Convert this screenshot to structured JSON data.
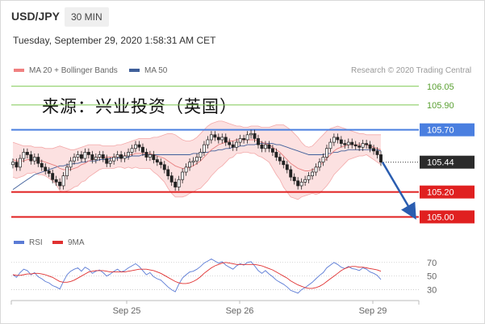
{
  "header": {
    "symbol": "USD/JPY",
    "timeframe": "30 MIN",
    "timestamp": "Tuesday, September 29, 2020 1:58:31 AM CET"
  },
  "legend_top": {
    "ma20_bb": {
      "label": "MA 20 + Bollinger Bands",
      "color": "#f08080"
    },
    "ma50": {
      "label": "MA 50",
      "color": "#3f5f9a"
    },
    "copyright": "Research © 2020 Trading Central"
  },
  "overlay_text": "来源：兴业投资（英国）",
  "legend_bottom": {
    "rsi": {
      "label": "RSI",
      "color": "#5b7bd5"
    },
    "ma9": {
      "label": "9MA",
      "color": "#e03030"
    }
  },
  "chart_data": {
    "type": "candlestick",
    "x_labels": [
      "Sep 25",
      "Sep 26",
      "Sep 29"
    ],
    "ylim": [
      104.86,
      106.12
    ],
    "y_ticks": [
      105.0,
      105.2,
      105.44,
      105.7,
      105.9,
      106.05
    ],
    "current_price": 105.44,
    "levels": [
      {
        "value": 106.05,
        "label": "106.05",
        "color": "#7ec850",
        "kind": "resistance"
      },
      {
        "value": 105.9,
        "label": "105.90",
        "color": "#7ec850",
        "kind": "resistance"
      },
      {
        "value": 105.7,
        "label": "105.70",
        "color": "#4a7fe0",
        "kind": "pivot"
      },
      {
        "value": 105.2,
        "label": "105.20",
        "color": "#e02020",
        "kind": "support"
      },
      {
        "value": 105.0,
        "label": "105.00",
        "color": "#e02020",
        "kind": "support"
      }
    ],
    "price_close": [
      105.44,
      105.4,
      105.47,
      105.52,
      105.5,
      105.45,
      105.48,
      105.43,
      105.4,
      105.37,
      105.35,
      105.3,
      105.28,
      105.25,
      105.33,
      105.4,
      105.45,
      105.48,
      105.5,
      105.47,
      105.52,
      105.5,
      105.46,
      105.48,
      105.5,
      105.47,
      105.43,
      105.45,
      105.48,
      105.5,
      105.47,
      105.49,
      105.52,
      105.55,
      105.58,
      105.56,
      105.52,
      105.48,
      105.5,
      105.46,
      105.44,
      105.42,
      105.38,
      105.33,
      105.28,
      105.24,
      105.3,
      105.36,
      105.4,
      105.44,
      105.45,
      105.48,
      105.52,
      105.58,
      105.62,
      105.66,
      105.64,
      105.62,
      105.64,
      105.6,
      105.58,
      105.56,
      105.6,
      105.63,
      105.62,
      105.66,
      105.67,
      105.63,
      105.58,
      105.55,
      105.58,
      105.55,
      105.52,
      105.48,
      105.45,
      105.42,
      105.38,
      105.32,
      105.29,
      105.25,
      105.28,
      105.3,
      105.33,
      105.36,
      105.4,
      105.44,
      105.48,
      105.55,
      105.6,
      105.64,
      105.62,
      105.59,
      105.58,
      105.6,
      105.58,
      105.57,
      105.56,
      105.59,
      105.58,
      105.55,
      105.53,
      105.5,
      105.44
    ],
    "price_open": [
      105.42,
      105.44,
      105.4,
      105.47,
      105.52,
      105.5,
      105.45,
      105.48,
      105.43,
      105.4,
      105.37,
      105.35,
      105.3,
      105.28,
      105.25,
      105.33,
      105.4,
      105.45,
      105.48,
      105.5,
      105.47,
      105.52,
      105.5,
      105.46,
      105.48,
      105.5,
      105.47,
      105.43,
      105.45,
      105.48,
      105.5,
      105.47,
      105.49,
      105.52,
      105.55,
      105.58,
      105.56,
      105.52,
      105.48,
      105.5,
      105.46,
      105.44,
      105.42,
      105.38,
      105.33,
      105.28,
      105.24,
      105.3,
      105.36,
      105.4,
      105.44,
      105.45,
      105.48,
      105.52,
      105.58,
      105.62,
      105.66,
      105.64,
      105.62,
      105.64,
      105.6,
      105.58,
      105.56,
      105.6,
      105.63,
      105.62,
      105.66,
      105.67,
      105.63,
      105.58,
      105.55,
      105.58,
      105.55,
      105.52,
      105.48,
      105.45,
      105.42,
      105.38,
      105.32,
      105.29,
      105.25,
      105.28,
      105.3,
      105.33,
      105.36,
      105.4,
      105.44,
      105.48,
      105.55,
      105.6,
      105.64,
      105.62,
      105.59,
      105.58,
      105.6,
      105.58,
      105.57,
      105.56,
      105.59,
      105.58,
      105.55,
      105.53,
      105.5
    ],
    "ma20": [
      105.46,
      105.45,
      105.45,
      105.45,
      105.46,
      105.46,
      105.46,
      105.45,
      105.45,
      105.44,
      105.43,
      105.42,
      105.41,
      105.39,
      105.38,
      105.38,
      105.38,
      105.39,
      105.4,
      105.42,
      105.43,
      105.45,
      105.46,
      105.47,
      105.48,
      105.48,
      105.48,
      105.48,
      105.48,
      105.49,
      105.49,
      105.49,
      105.5,
      105.5,
      105.51,
      105.51,
      105.51,
      105.51,
      105.51,
      105.5,
      105.49,
      105.48,
      105.47,
      105.45,
      105.43,
      105.41,
      105.4,
      105.39,
      105.39,
      105.4,
      105.41,
      105.43,
      105.45,
      105.48,
      105.51,
      105.54,
      105.56,
      105.58,
      105.59,
      105.6,
      105.61,
      105.61,
      105.62,
      105.62,
      105.62,
      105.62,
      105.62,
      105.62,
      105.61,
      105.6,
      105.59,
      105.58,
      105.56,
      105.54,
      105.52,
      105.49,
      105.46,
      105.43,
      105.41,
      105.39,
      105.38,
      105.37,
      105.37,
      105.38,
      105.39,
      105.41,
      105.44,
      105.47,
      105.5,
      105.53,
      105.55,
      105.56,
      105.57,
      105.58,
      105.58,
      105.58,
      105.58,
      105.58,
      105.58,
      105.57,
      105.56,
      105.55,
      105.54
    ],
    "ma50": [
      105.22,
      105.24,
      105.26,
      105.28,
      105.3,
      105.32,
      105.34,
      105.35,
      105.36,
      105.37,
      105.38,
      105.39,
      105.4,
      105.41,
      105.41,
      105.42,
      105.42,
      105.43,
      105.43,
      105.44,
      105.44,
      105.45,
      105.45,
      105.45,
      105.46,
      105.46,
      105.46,
      105.47,
      105.47,
      105.47,
      105.48,
      105.48,
      105.48,
      105.49,
      105.49,
      105.49,
      105.5,
      105.5,
      105.5,
      105.5,
      105.5,
      105.5,
      105.5,
      105.5,
      105.5,
      105.5,
      105.5,
      105.5,
      105.5,
      105.5,
      105.51,
      105.51,
      105.51,
      105.52,
      105.52,
      105.53,
      105.53,
      105.54,
      105.54,
      105.55,
      105.55,
      105.56,
      105.56,
      105.57,
      105.57,
      105.58,
      105.58,
      105.58,
      105.59,
      105.59,
      105.59,
      105.59,
      105.59,
      105.58,
      105.58,
      105.57,
      105.56,
      105.55,
      105.54,
      105.53,
      105.52,
      105.51,
      105.5,
      105.5,
      105.5,
      105.5,
      105.5,
      105.51,
      105.51,
      105.52,
      105.52,
      105.53,
      105.53,
      105.54,
      105.54,
      105.54,
      105.54,
      105.54,
      105.54,
      105.54,
      105.54,
      105.54,
      105.53
    ],
    "bb_upper": [
      105.6,
      105.59,
      105.58,
      105.57,
      105.57,
      105.57,
      105.56,
      105.56,
      105.56,
      105.55,
      105.55,
      105.55,
      105.56,
      105.57,
      105.56,
      105.55,
      105.54,
      105.54,
      105.55,
      105.56,
      105.57,
      105.58,
      105.58,
      105.58,
      105.58,
      105.57,
      105.57,
      105.57,
      105.57,
      105.58,
      105.58,
      105.59,
      105.6,
      105.61,
      105.62,
      105.63,
      105.63,
      105.63,
      105.63,
      105.64,
      105.64,
      105.65,
      105.66,
      105.67,
      105.67,
      105.66,
      105.64,
      105.62,
      105.61,
      105.61,
      105.62,
      105.64,
      105.67,
      105.7,
      105.73,
      105.75,
      105.76,
      105.77,
      105.77,
      105.76,
      105.75,
      105.74,
      105.73,
      105.73,
      105.72,
      105.72,
      105.73,
      105.73,
      105.73,
      105.72,
      105.72,
      105.72,
      105.73,
      105.74,
      105.74,
      105.74,
      105.72,
      105.7,
      105.67,
      105.64,
      105.6,
      105.57,
      105.56,
      105.57,
      105.6,
      105.63,
      105.66,
      105.69,
      105.71,
      105.72,
      105.73,
      105.72,
      105.71,
      105.7,
      105.69,
      105.68,
      105.67,
      105.67,
      105.66,
      105.66,
      105.66,
      105.66,
      105.66
    ],
    "bb_lower": [
      105.32,
      105.31,
      105.32,
      105.33,
      105.35,
      105.35,
      105.36,
      105.34,
      105.34,
      105.33,
      105.31,
      105.29,
      105.26,
      105.21,
      105.2,
      105.21,
      105.22,
      105.24,
      105.25,
      105.28,
      105.29,
      105.32,
      105.34,
      105.36,
      105.38,
      105.39,
      105.39,
      105.39,
      105.39,
      105.4,
      105.4,
      105.39,
      105.4,
      105.39,
      105.4,
      105.39,
      105.39,
      105.39,
      105.39,
      105.36,
      105.34,
      105.31,
      105.28,
      105.23,
      105.19,
      105.16,
      105.16,
      105.16,
      105.17,
      105.19,
      105.2,
      105.22,
      105.23,
      105.26,
      105.29,
      105.33,
      105.36,
      105.39,
      105.41,
      105.44,
      105.47,
      105.48,
      105.51,
      105.51,
      105.52,
      105.52,
      105.51,
      105.51,
      105.49,
      105.48,
      105.46,
      105.44,
      105.39,
      105.34,
      105.3,
      105.24,
      105.2,
      105.16,
      105.15,
      105.14,
      105.16,
      105.17,
      105.18,
      105.19,
      105.18,
      105.19,
      105.22,
      105.25,
      105.29,
      105.34,
      105.37,
      105.4,
      105.43,
      105.46,
      105.47,
      105.48,
      105.49,
      105.49,
      105.5,
      105.48,
      105.46,
      105.44,
      105.42
    ]
  },
  "rsi_data": {
    "y_ticks": [
      70,
      50,
      30
    ],
    "ylim": [
      20,
      78
    ],
    "rsi": [
      52,
      48,
      55,
      60,
      58,
      52,
      55,
      49,
      46,
      42,
      40,
      36,
      34,
      31,
      42,
      52,
      57,
      60,
      62,
      57,
      63,
      60,
      54,
      57,
      59,
      55,
      50,
      53,
      57,
      60,
      56,
      58,
      62,
      65,
      68,
      64,
      58,
      52,
      55,
      49,
      46,
      44,
      39,
      34,
      30,
      27,
      38,
      47,
      52,
      56,
      57,
      60,
      64,
      69,
      72,
      75,
      72,
      69,
      71,
      66,
      63,
      60,
      65,
      68,
      66,
      70,
      71,
      65,
      58,
      54,
      58,
      53,
      49,
      44,
      41,
      38,
      34,
      29,
      27,
      25,
      30,
      33,
      37,
      41,
      46,
      51,
      55,
      62,
      66,
      70,
      67,
      63,
      61,
      64,
      61,
      60,
      58,
      62,
      60,
      56,
      54,
      51,
      45
    ],
    "ma9": [
      52,
      51,
      51,
      52,
      53,
      53,
      54,
      54,
      53,
      52,
      50,
      48,
      45,
      42,
      41,
      41,
      42,
      44,
      47,
      50,
      53,
      56,
      57,
      58,
      58,
      58,
      57,
      56,
      56,
      56,
      56,
      56,
      57,
      58,
      59,
      60,
      60,
      60,
      59,
      58,
      56,
      54,
      51,
      48,
      45,
      42,
      40,
      39,
      39,
      40,
      42,
      45,
      49,
      54,
      58,
      62,
      65,
      67,
      69,
      70,
      69,
      68,
      67,
      67,
      67,
      67,
      67,
      67,
      66,
      65,
      63,
      61,
      59,
      56,
      53,
      50,
      47,
      43,
      40,
      37,
      35,
      33,
      32,
      32,
      33,
      35,
      38,
      42,
      46,
      50,
      54,
      58,
      61,
      63,
      64,
      64,
      63,
      63,
      62,
      61,
      60,
      59,
      57
    ]
  },
  "forecast_arrow": {
    "from": 105.44,
    "to": 105.02
  }
}
